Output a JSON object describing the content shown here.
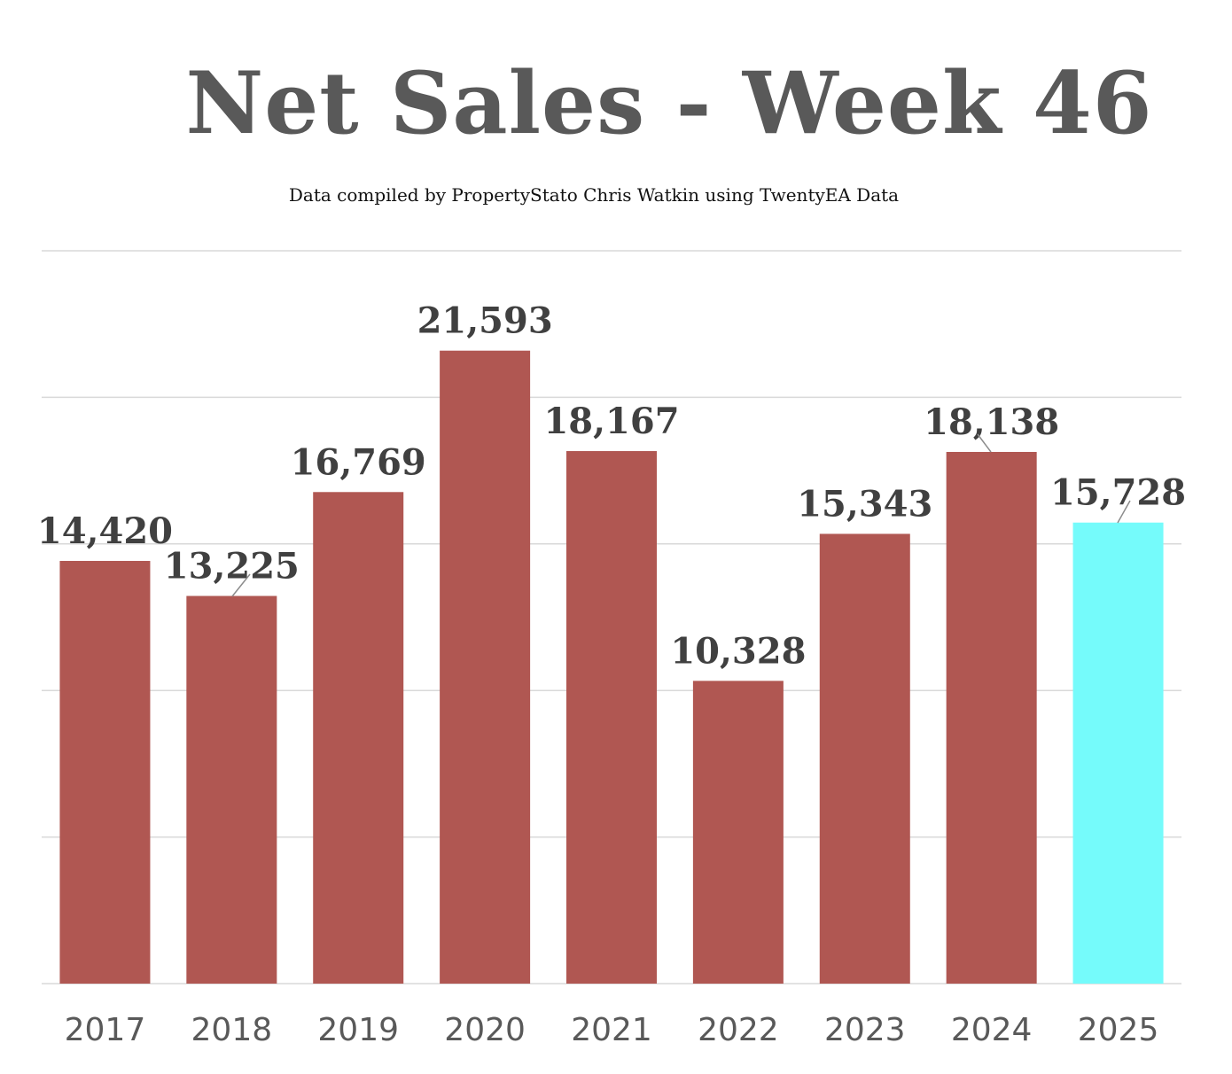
{
  "chart_data": {
    "type": "bar",
    "title": "Net Sales - Week 46",
    "subtitle": "Data compiled by PropertyStato Chris Watkin using TwentyEA Data",
    "categories": [
      "2017",
      "2018",
      "2019",
      "2020",
      "2021",
      "2022",
      "2023",
      "2024",
      "2025"
    ],
    "values": [
      14420,
      13225,
      16769,
      21593,
      18167,
      10328,
      15343,
      18138,
      15728
    ],
    "value_labels": [
      "14,420",
      "13,225",
      "16,769",
      "21,593",
      "18,167",
      "10,328",
      "15,343",
      "18,138",
      "15,728"
    ],
    "ylim": [
      0,
      25000
    ],
    "grid": true,
    "xlabel": "",
    "ylabel": "",
    "colors": {
      "bar": "#B05752",
      "highlight": "#75FBFB",
      "grid": "#D9D9D9",
      "axis": "#D9D9D9"
    },
    "highlight_category": "2025"
  }
}
